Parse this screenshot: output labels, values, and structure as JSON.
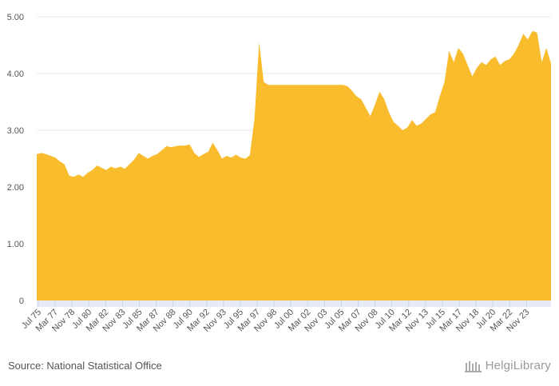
{
  "chart_data": {
    "type": "area",
    "title": "",
    "xlabel": "",
    "ylabel": "",
    "ylim": [
      0,
      5
    ],
    "y_ticks": [
      "0",
      "1.00",
      "2.00",
      "3.00",
      "4.00",
      "5.00"
    ],
    "x_tick_labels": [
      "Jul 75",
      "Mar 77",
      "Nov 78",
      "Jul 80",
      "Mar 82",
      "Nov 83",
      "Jul 85",
      "Mar 87",
      "Nov 88",
      "Jul 90",
      "Mar 92",
      "Nov 93",
      "Jul 95",
      "Mar 97",
      "Nov 98",
      "Jul 00",
      "Mar 02",
      "Nov 03",
      "Jul 05",
      "Mar 07",
      "Nov 08",
      "Jul 10",
      "Mar 12",
      "Nov 13",
      "Jul 15",
      "Mar 17",
      "Nov 18",
      "Jul 20",
      "Mar 22",
      "Nov 23"
    ],
    "x_start": "Jul 75",
    "x_end": "Mar 25",
    "series": [
      {
        "name": "value",
        "color": "#f9bc2d",
        "points": [
          [
            0,
            2.58
          ],
          [
            1,
            2.6
          ],
          [
            2,
            2.58
          ],
          [
            3,
            2.55
          ],
          [
            4,
            2.52
          ],
          [
            5,
            2.45
          ],
          [
            6,
            2.4
          ],
          [
            7,
            2.2
          ],
          [
            8,
            2.18
          ],
          [
            9,
            2.22
          ],
          [
            10,
            2.18
          ],
          [
            11,
            2.25
          ],
          [
            12,
            2.3
          ],
          [
            13,
            2.38
          ],
          [
            14,
            2.34
          ],
          [
            15,
            2.3
          ],
          [
            16,
            2.36
          ],
          [
            17,
            2.33
          ],
          [
            18,
            2.36
          ],
          [
            19,
            2.32
          ],
          [
            20,
            2.4
          ],
          [
            21,
            2.48
          ],
          [
            22,
            2.6
          ],
          [
            23,
            2.55
          ],
          [
            24,
            2.5
          ],
          [
            25,
            2.55
          ],
          [
            26,
            2.58
          ],
          [
            27,
            2.65
          ],
          [
            28,
            2.72
          ],
          [
            29,
            2.7
          ],
          [
            30,
            2.72
          ],
          [
            31,
            2.73
          ],
          [
            32,
            2.73
          ],
          [
            33,
            2.75
          ],
          [
            34,
            2.6
          ],
          [
            35,
            2.53
          ],
          [
            36,
            2.58
          ],
          [
            37,
            2.62
          ],
          [
            38,
            2.78
          ],
          [
            39,
            2.65
          ],
          [
            40,
            2.5
          ],
          [
            41,
            2.55
          ],
          [
            42,
            2.52
          ],
          [
            43,
            2.57
          ],
          [
            44,
            2.52
          ],
          [
            45,
            2.5
          ],
          [
            46,
            2.56
          ],
          [
            47,
            3.2
          ],
          [
            48,
            4.55
          ],
          [
            49,
            3.85
          ],
          [
            50,
            3.8
          ],
          [
            51,
            3.8
          ],
          [
            52,
            3.8
          ],
          [
            53,
            3.8
          ],
          [
            54,
            3.8
          ],
          [
            55,
            3.8
          ],
          [
            56,
            3.8
          ],
          [
            57,
            3.8
          ],
          [
            58,
            3.8
          ],
          [
            59,
            3.8
          ],
          [
            60,
            3.8
          ],
          [
            61,
            3.8
          ],
          [
            62,
            3.8
          ],
          [
            63,
            3.8
          ],
          [
            64,
            3.8
          ],
          [
            65,
            3.8
          ],
          [
            66,
            3.8
          ],
          [
            67,
            3.78
          ],
          [
            68,
            3.7
          ],
          [
            69,
            3.6
          ],
          [
            70,
            3.55
          ],
          [
            71,
            3.4
          ],
          [
            72,
            3.25
          ],
          [
            73,
            3.45
          ],
          [
            74,
            3.68
          ],
          [
            75,
            3.55
          ],
          [
            76,
            3.32
          ],
          [
            77,
            3.15
          ],
          [
            78,
            3.08
          ],
          [
            79,
            3.0
          ],
          [
            80,
            3.05
          ],
          [
            81,
            3.18
          ],
          [
            82,
            3.08
          ],
          [
            83,
            3.12
          ],
          [
            84,
            3.2
          ],
          [
            85,
            3.28
          ],
          [
            86,
            3.32
          ],
          [
            87,
            3.6
          ],
          [
            88,
            3.85
          ],
          [
            89,
            4.4
          ],
          [
            90,
            4.2
          ],
          [
            91,
            4.45
          ],
          [
            92,
            4.35
          ],
          [
            93,
            4.15
          ],
          [
            94,
            3.95
          ],
          [
            95,
            4.1
          ],
          [
            96,
            4.2
          ],
          [
            97,
            4.15
          ],
          [
            98,
            4.25
          ],
          [
            99,
            4.3
          ],
          [
            100,
            4.15
          ],
          [
            101,
            4.22
          ],
          [
            102,
            4.25
          ],
          [
            103,
            4.35
          ],
          [
            104,
            4.5
          ],
          [
            105,
            4.7
          ],
          [
            106,
            4.6
          ],
          [
            107,
            4.75
          ],
          [
            108,
            4.72
          ],
          [
            109,
            4.2
          ],
          [
            110,
            4.45
          ],
          [
            111,
            4.18
          ]
        ]
      }
    ]
  },
  "footer": {
    "source": "Source: National Statistical Office",
    "brand": "HelgiLibrary"
  },
  "colors": {
    "area": "#f9bc2d",
    "grid": "#e8e8e8",
    "axis_band": "#e6ebf5"
  }
}
